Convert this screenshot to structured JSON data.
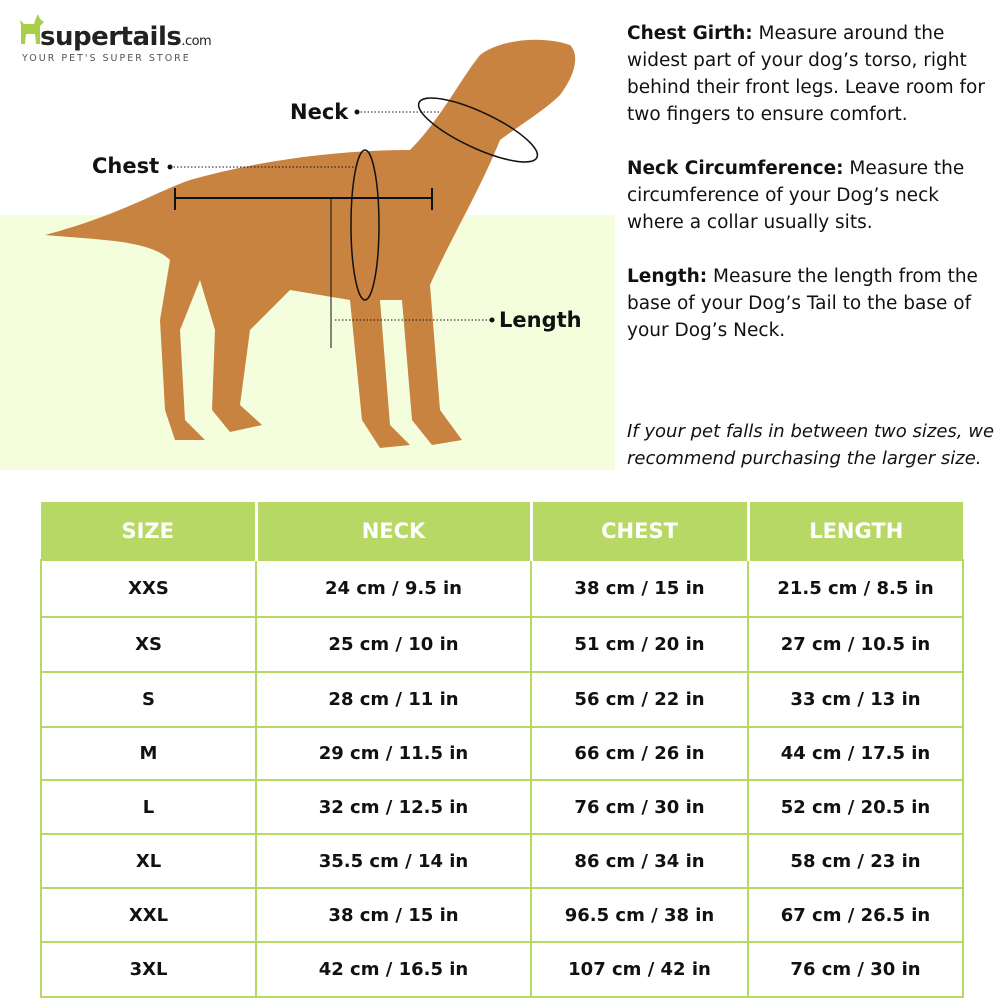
{
  "logo": {
    "brand": "supertails",
    "domain": ".com",
    "tagline": "YOUR PET'S SUPER STORE"
  },
  "diagram": {
    "labels": {
      "neck": "Neck",
      "chest": "Chest",
      "length": "Length"
    }
  },
  "descriptions": [
    {
      "term": "Chest Girth:",
      "text": " Measure around the widest part of your dog’s torso, right behind their front legs. Leave room for two fingers to ensure comfort."
    },
    {
      "term": "Neck Circumference:",
      "text": " Measure the circumference of your Dog’s neck where a collar usually sits."
    },
    {
      "term": "Length:",
      "text": " Measure the length from the base of your Dog’s Tail to the base of your Dog’s Neck."
    }
  ],
  "note": "If your pet falls in between two sizes, we recommend purchasing the larger size.",
  "colors": {
    "accent": "#b8d866",
    "panel": "#f4fddc",
    "dog": "#c7833f"
  },
  "table": {
    "headers": [
      "SIZE",
      "NECK",
      "CHEST",
      "LENGTH"
    ],
    "rows": [
      [
        "XXS",
        "24 cm / 9.5 in",
        "38 cm / 15 in",
        "21.5 cm / 8.5 in"
      ],
      [
        "XS",
        "25 cm / 10 in",
        "51 cm / 20 in",
        "27 cm / 10.5 in"
      ],
      [
        "S",
        "28 cm / 11 in",
        "56 cm / 22 in",
        "33 cm / 13 in"
      ],
      [
        "M",
        "29 cm / 11.5 in",
        "66 cm / 26 in",
        "44 cm / 17.5 in"
      ],
      [
        "L",
        "32 cm / 12.5 in",
        "76 cm / 30 in",
        "52 cm / 20.5 in"
      ],
      [
        "XL",
        "35.5 cm / 14 in",
        "86 cm / 34 in",
        "58 cm / 23 in"
      ],
      [
        "XXL",
        "38 cm / 15 in",
        "96.5 cm / 38 in",
        "67 cm / 26.5 in"
      ],
      [
        "3XL",
        "42 cm / 16.5 in",
        "107 cm / 42 in",
        "76 cm / 30 in"
      ]
    ]
  }
}
